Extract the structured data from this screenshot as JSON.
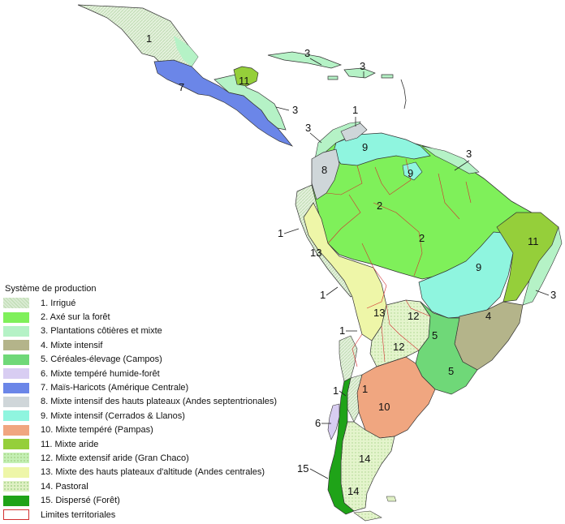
{
  "legend": {
    "title": "Système de production",
    "items": [
      {
        "label": "1. Irrigué",
        "color": "#d9ebd2",
        "pattern": "hatch"
      },
      {
        "label": "2. Axé sur la forêt",
        "color": "#7ff05a",
        "pattern": "solid"
      },
      {
        "label": "3. Plantations côtières et mixte",
        "color": "#b5f2c6",
        "pattern": "solid"
      },
      {
        "label": "4. Mixte intensif",
        "color": "#b4b48a",
        "pattern": "solid"
      },
      {
        "label": "5. Céréales-élevage (Campos)",
        "color": "#6fd878",
        "pattern": "solid"
      },
      {
        "label": "6. Mixte tempéré humide-forêt",
        "color": "#d8cdf2",
        "pattern": "solid"
      },
      {
        "label": "7. Maïs-Haricots (Amérique Centrale)",
        "color": "#6b86e8",
        "pattern": "solid"
      },
      {
        "label": "8. Mixte intensif des hauts plateaux (Andes septentrionales)",
        "color": "#cfd6d9",
        "pattern": "solid"
      },
      {
        "label": "9. Mixte intensif (Cerrados & Llanos)",
        "color": "#8ff5df",
        "pattern": "solid"
      },
      {
        "label": "10. Mixte tempéré (Pampas)",
        "color": "#f0a680",
        "pattern": "solid"
      },
      {
        "label": "11. Mixte aride",
        "color": "#95cf3a",
        "pattern": "solid"
      },
      {
        "label": "12. Mixte extensif aride (Gran Chaco)",
        "color": "#c4f0b4",
        "pattern": "dots"
      },
      {
        "label": "13. Mixte des hauts plateaux d'altitude (Andes centrales)",
        "color": "#eef6a8",
        "pattern": "solid"
      },
      {
        "label": "14. Pastoral",
        "color": "#dff0c4",
        "pattern": "dots"
      },
      {
        "label": "15. Dispersé (Forêt)",
        "color": "#1fa318",
        "pattern": "solid"
      },
      {
        "label": "Limites territoriales",
        "color": "#d23030",
        "pattern": "outline"
      }
    ]
  },
  "map_labels": {
    "mexico_1": "1",
    "caribbean_3a": "3",
    "caribbean_3b": "3",
    "yucatan_11": "11",
    "central_7": "7",
    "central_3": "3",
    "colombia_1": "1",
    "colombia_3": "3",
    "llanos_9": "9",
    "guiana_3": "3",
    "andes_8": "8",
    "amazon_9": "9",
    "amazon_2a": "2",
    "amazon_2b": "2",
    "brazil_11": "11",
    "ecuador_1": "1",
    "andes_13a": "13",
    "cerrado_9": "9",
    "brazil_3": "3",
    "peru_1": "1",
    "andes_13b": "13",
    "chaco_12a": "12",
    "brazil_4": "4",
    "chile_1a": "1",
    "campos_5a": "5",
    "chaco_12b": "12",
    "campos_5b": "5",
    "chile_1b": "1",
    "argentina_1": "1",
    "pampas_10": "10",
    "chile_6": "6",
    "chile_15": "15",
    "patagonia_14a": "14",
    "patagonia_14b": "14"
  },
  "colors": {
    "boundary": "#d23030",
    "outline": "#333333"
  }
}
